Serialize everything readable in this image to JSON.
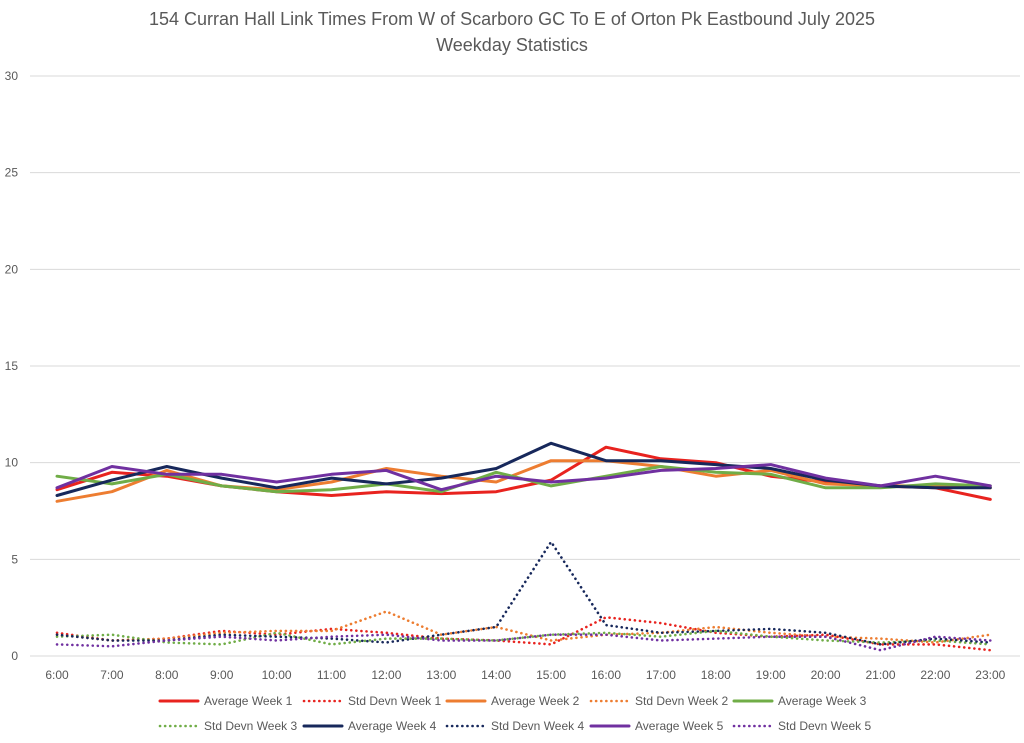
{
  "chart_data": {
    "type": "line",
    "title": "154 Curran Hall Link Times From W of Scarboro GC To E of Orton Pk Eastbound July 2025",
    "subtitle": "Weekday Statistics",
    "xlabel": "",
    "ylabel": "",
    "ylim": [
      0,
      30
    ],
    "yticks": [
      0,
      5,
      10,
      15,
      20,
      25,
      30
    ],
    "grid": true,
    "legend_position": "bottom",
    "categories": [
      "6:00",
      "7:00",
      "8:00",
      "9:00",
      "10:00",
      "11:00",
      "12:00",
      "13:00",
      "14:00",
      "15:00",
      "16:00",
      "17:00",
      "18:00",
      "19:00",
      "20:00",
      "21:00",
      "22:00",
      "23:00"
    ],
    "series": [
      {
        "name": "Average Week 1",
        "color": "#e8231f",
        "style": "solid",
        "values": [
          8.6,
          9.5,
          9.3,
          8.8,
          8.5,
          8.3,
          8.5,
          8.4,
          8.5,
          9.1,
          10.8,
          10.2,
          10.0,
          9.3,
          9.0,
          8.8,
          8.7,
          8.1
        ]
      },
      {
        "name": "Std Devn Week 1",
        "color": "#e8231f",
        "style": "dotted",
        "values": [
          1.2,
          0.8,
          0.9,
          1.3,
          1.1,
          1.4,
          1.2,
          0.9,
          0.8,
          0.6,
          2.0,
          1.7,
          1.2,
          1.0,
          1.1,
          0.6,
          0.6,
          0.3
        ]
      },
      {
        "name": "Average Week 2",
        "color": "#ed7d31",
        "style": "solid",
        "values": [
          8.0,
          8.5,
          9.6,
          8.8,
          8.6,
          9.0,
          9.7,
          9.3,
          9.0,
          10.1,
          10.1,
          9.8,
          9.3,
          9.6,
          8.9,
          8.8,
          8.8,
          8.7
        ]
      },
      {
        "name": "Std Devn Week 2",
        "color": "#ed7d31",
        "style": "dotted",
        "values": [
          1.1,
          0.8,
          0.9,
          1.2,
          1.3,
          1.3,
          2.3,
          1.1,
          1.5,
          0.8,
          1.1,
          1.2,
          1.5,
          1.2,
          1.0,
          0.9,
          0.7,
          1.1
        ]
      },
      {
        "name": "Average Week 3",
        "color": "#70ad47",
        "style": "solid",
        "values": [
          9.3,
          8.9,
          9.4,
          8.8,
          8.5,
          8.6,
          8.9,
          8.5,
          9.5,
          8.8,
          9.3,
          9.8,
          9.5,
          9.4,
          8.7,
          8.7,
          8.9,
          8.8
        ]
      },
      {
        "name": "Std Devn Week 3",
        "color": "#70ad47",
        "style": "dotted",
        "values": [
          1.0,
          1.1,
          0.7,
          0.6,
          1.2,
          0.6,
          0.9,
          0.9,
          0.8,
          1.1,
          1.2,
          1.0,
          1.3,
          1.0,
          0.8,
          0.7,
          0.8,
          0.6
        ]
      },
      {
        "name": "Average Week 4",
        "color": "#17285b",
        "style": "solid",
        "values": [
          8.3,
          9.1,
          9.8,
          9.2,
          8.7,
          9.2,
          8.9,
          9.2,
          9.7,
          11.0,
          10.1,
          10.1,
          9.9,
          9.7,
          9.1,
          8.8,
          8.7,
          8.7
        ]
      },
      {
        "name": "Std Devn Week 4",
        "color": "#17285b",
        "style": "dotted",
        "values": [
          1.1,
          0.8,
          0.8,
          1.1,
          1.0,
          0.9,
          0.7,
          1.1,
          1.5,
          5.9,
          1.6,
          1.2,
          1.3,
          1.4,
          1.2,
          0.6,
          0.9,
          0.7
        ]
      },
      {
        "name": "Average Week 5",
        "color": "#7030a0",
        "style": "solid",
        "values": [
          8.7,
          9.8,
          9.4,
          9.4,
          9.0,
          9.4,
          9.6,
          8.6,
          9.3,
          9.0,
          9.2,
          9.6,
          9.7,
          9.9,
          9.2,
          8.8,
          9.3,
          8.8
        ]
      },
      {
        "name": "Std Devn Week 5",
        "color": "#7030a0",
        "style": "dotted",
        "values": [
          0.6,
          0.5,
          0.8,
          1.0,
          0.8,
          1.0,
          1.1,
          0.8,
          0.8,
          1.1,
          1.1,
          0.8,
          0.9,
          1.0,
          1.0,
          0.3,
          1.0,
          0.8
        ]
      }
    ]
  }
}
